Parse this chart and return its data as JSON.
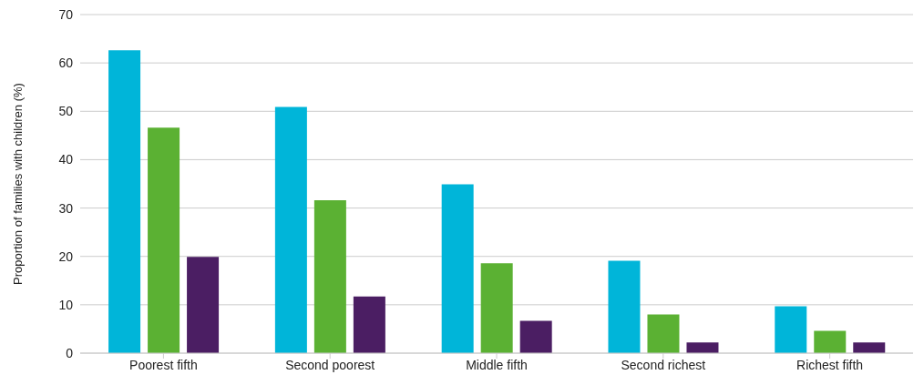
{
  "chart_data": {
    "type": "bar",
    "ylabel": "Proportion of families with children (%)",
    "categories": [
      "Poorest fifth",
      "Second poorest",
      "Middle fifth",
      "Second richest",
      "Richest fifth"
    ],
    "series": [
      {
        "color": "#00b5d9",
        "values": [
          62.6,
          50.9,
          34.9,
          19.1,
          9.7
        ]
      },
      {
        "color": "#5bb133",
        "values": [
          46.6,
          31.6,
          18.6,
          8.0,
          4.6
        ]
      },
      {
        "color": "#4b1e63",
        "values": [
          19.9,
          11.7,
          6.7,
          2.2,
          2.2
        ]
      }
    ],
    "ylim": [
      0,
      70
    ],
    "yticks": [
      0,
      10,
      20,
      30,
      40,
      50,
      60,
      70
    ],
    "grid": "y",
    "legend": false
  }
}
